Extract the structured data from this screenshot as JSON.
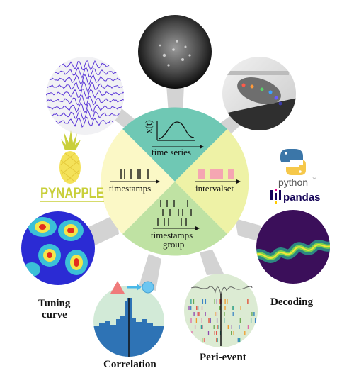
{
  "center": {
    "quadrants": [
      {
        "id": "time-series",
        "label": "time series",
        "axis_label": "x(t)",
        "color": "#6fc8b4"
      },
      {
        "id": "timestamps",
        "label": "timestamps",
        "color": "#fbf8c6"
      },
      {
        "id": "intervalset",
        "label": "intervalset",
        "color": "#eef2a6"
      },
      {
        "id": "timestamps-group",
        "label_line1": "timestamps",
        "label_line2": "group",
        "color": "#bfe2a3"
      }
    ]
  },
  "logos": {
    "pynapple": "PYNAPPLE",
    "python": "python",
    "python_mark": "™",
    "pandas": "pandas"
  },
  "panels": [
    {
      "id": "lfp",
      "icon": "waveforms-icon"
    },
    {
      "id": "calcium",
      "icon": "calcium-imaging-icon"
    },
    {
      "id": "tracking",
      "icon": "pose-tracking-icon"
    },
    {
      "id": "tuning",
      "icon": "heatmap-icon",
      "label_line1": "Tuning",
      "label_line2": "curve"
    },
    {
      "id": "correlation",
      "icon": "cross-correlogram-icon",
      "label": "Correlation"
    },
    {
      "id": "peri-event",
      "icon": "raster-icon",
      "label": "Peri-event"
    },
    {
      "id": "decoding",
      "icon": "decoding-icon",
      "label": "Decoding"
    }
  ],
  "colors": {
    "spoke": "#d3d3d3",
    "pynapple": "#c8cf3a",
    "python_blue": "#3b76a8",
    "python_yellow": "#f6c84a",
    "pandas": "#150458"
  }
}
